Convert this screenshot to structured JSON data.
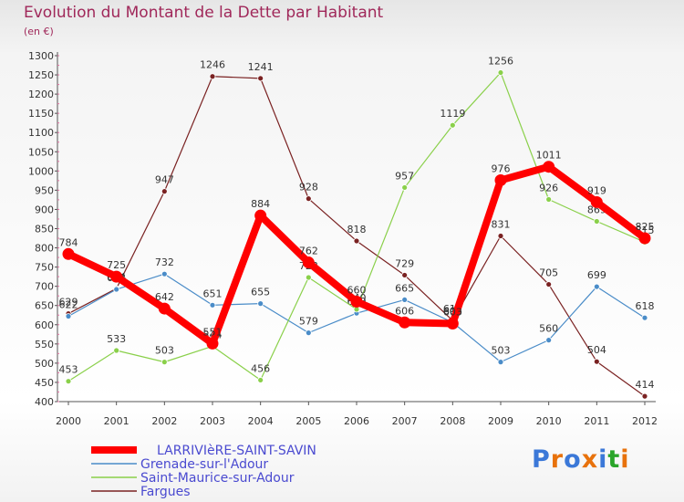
{
  "header": {
    "title": "Evolution du Montant de la Dette par Habitant",
    "unit": "(en €)"
  },
  "logo": {
    "text": "Proxiti",
    "colors": [
      "#3b78d8",
      "#e8720c",
      "#3b78d8",
      "#e8720c",
      "#3b78d8",
      "#2aa52a",
      "#e8720c"
    ]
  },
  "chart_data": {
    "type": "line",
    "x": [
      "2000",
      "2001",
      "2002",
      "2003",
      "2004",
      "2005",
      "2006",
      "2007",
      "2008",
      "2009",
      "2010",
      "2011",
      "2012"
    ],
    "ylim": [
      400,
      1300
    ],
    "yticks": [
      400,
      450,
      500,
      550,
      600,
      650,
      700,
      750,
      800,
      850,
      900,
      950,
      1000,
      1050,
      1100,
      1150,
      1200,
      1250,
      1300
    ],
    "grid": false,
    "legend_position": "bottom-left",
    "series": [
      {
        "name": "Fargues",
        "color": "#7a2222",
        "values": [
          629,
          694,
          947,
          1246,
          1241,
          928,
          818,
          729,
          611,
          831,
          705,
          504,
          414
        ],
        "labels": [
          "629",
          "694",
          "947",
          "1246",
          "1241",
          "928",
          "818",
          "729",
          "611",
          "831",
          "705",
          "504",
          "414"
        ]
      },
      {
        "name": "Grenade-sur-l'Adour",
        "color": "#4a8cc8",
        "values": [
          622,
          692,
          732,
          651,
          655,
          579,
          630,
          665,
          606,
          503,
          560,
          699,
          618
        ],
        "labels": [
          "622",
          "692",
          "732",
          "651",
          "655",
          "579",
          "630",
          "665",
          "606",
          "503",
          "560",
          "699",
          "618"
        ]
      },
      {
        "name": "Saint-Maurice-sur-Adour",
        "color": "#8ad04a",
        "values": [
          453,
          533,
          503,
          544,
          456,
          723,
          640,
          957,
          1119,
          1256,
          926,
          869,
          815
        ],
        "labels": [
          "453",
          "533",
          "503",
          "544",
          "456",
          "723",
          "640",
          "957",
          "1119",
          "1256",
          "926",
          "869",
          "815"
        ]
      },
      {
        "name": "LARRIVIèRE-SAINT-SAVIN",
        "color": "#ff0000",
        "values": [
          784,
          725,
          642,
          551,
          884,
          762,
          660,
          606,
          603,
          976,
          1011,
          919,
          825
        ],
        "labels": [
          "784",
          "725",
          "642",
          "551",
          "884",
          "762",
          "660",
          "606",
          "603",
          "976",
          "1011",
          "919",
          "825"
        ]
      }
    ],
    "legend": [
      "LARRIVIèRE-SAINT-SAVIN",
      "Grenade-sur-l'Adour",
      "Saint-Maurice-sur-Adour",
      "Fargues"
    ]
  }
}
